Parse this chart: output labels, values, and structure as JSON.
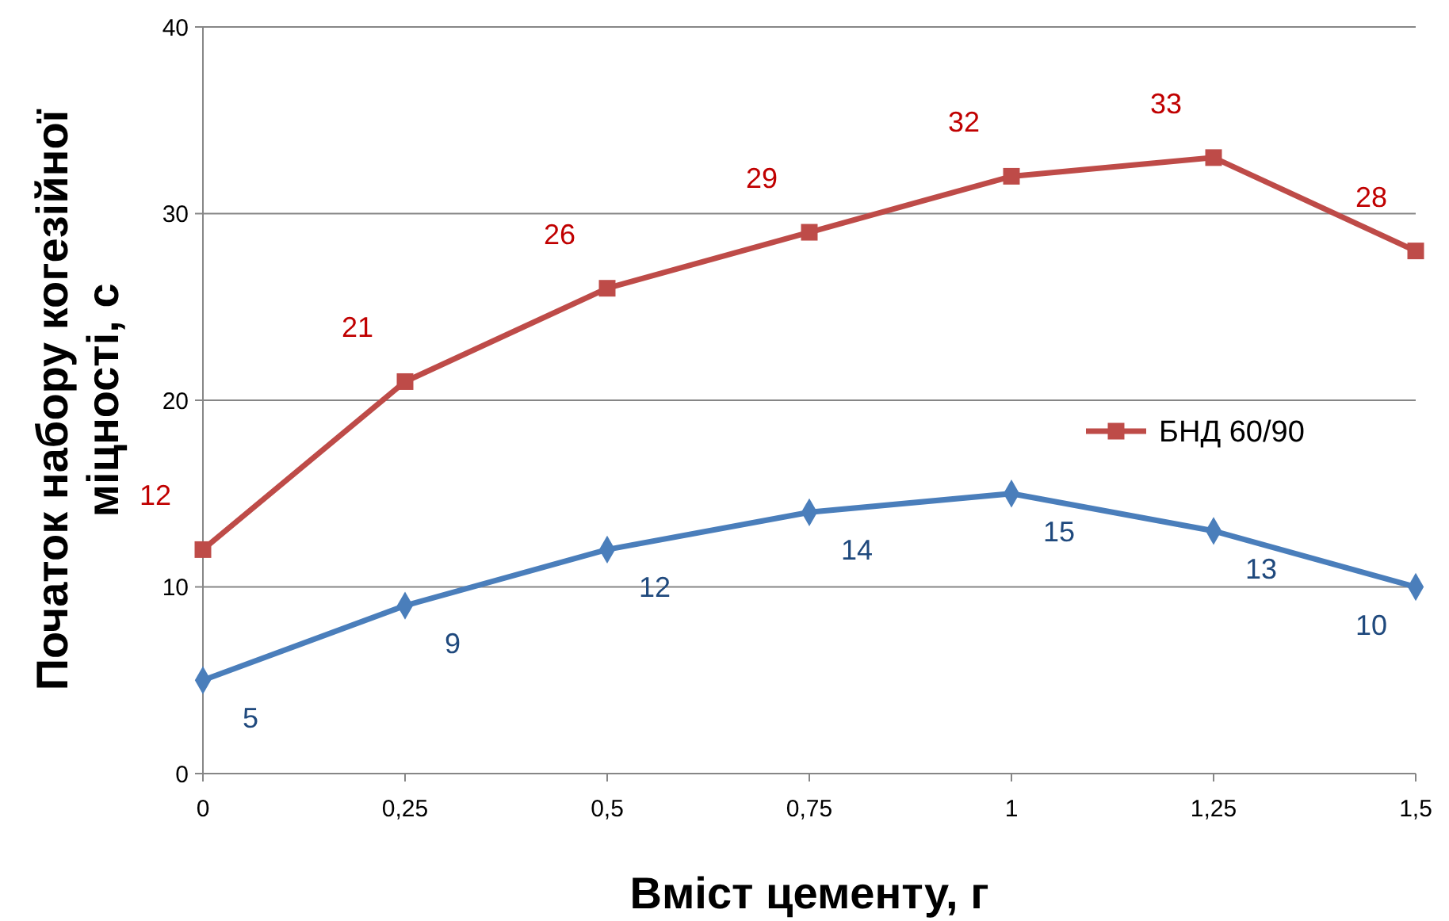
{
  "chart_data": {
    "type": "line",
    "xlabel": "Вміст цементу, г",
    "ylabel": "Початок набору когезійної міцності, с",
    "x": [
      0,
      0.25,
      0.5,
      0.75,
      1,
      1.25,
      1.5
    ],
    "series": [
      {
        "color": "#4a7ebb",
        "marker": "diamond",
        "values": [
          5,
          9,
          12,
          14,
          15,
          13,
          10
        ]
      },
      {
        "name": "БНД 60/90",
        "color": "#be4b48",
        "marker": "square",
        "values": [
          12,
          21,
          26,
          29,
          32,
          33,
          28
        ]
      }
    ],
    "xlim": [
      0,
      1.5
    ],
    "xticks": [
      0,
      {
        "value": 0.25,
        "label": "0,25"
      },
      {
        "value": 0.5,
        "label": "0,5"
      },
      {
        "value": 0.75,
        "label": "0,75"
      },
      1,
      {
        "value": 1.25,
        "label": "1,25"
      },
      {
        "value": 1.5,
        "label": "1,5"
      }
    ],
    "ylim": [
      0,
      40
    ],
    "yticks": [
      0,
      10,
      20,
      30,
      40
    ],
    "grid": "y",
    "legend": "right",
    "data_labels": true,
    "line_style": "solid"
  }
}
